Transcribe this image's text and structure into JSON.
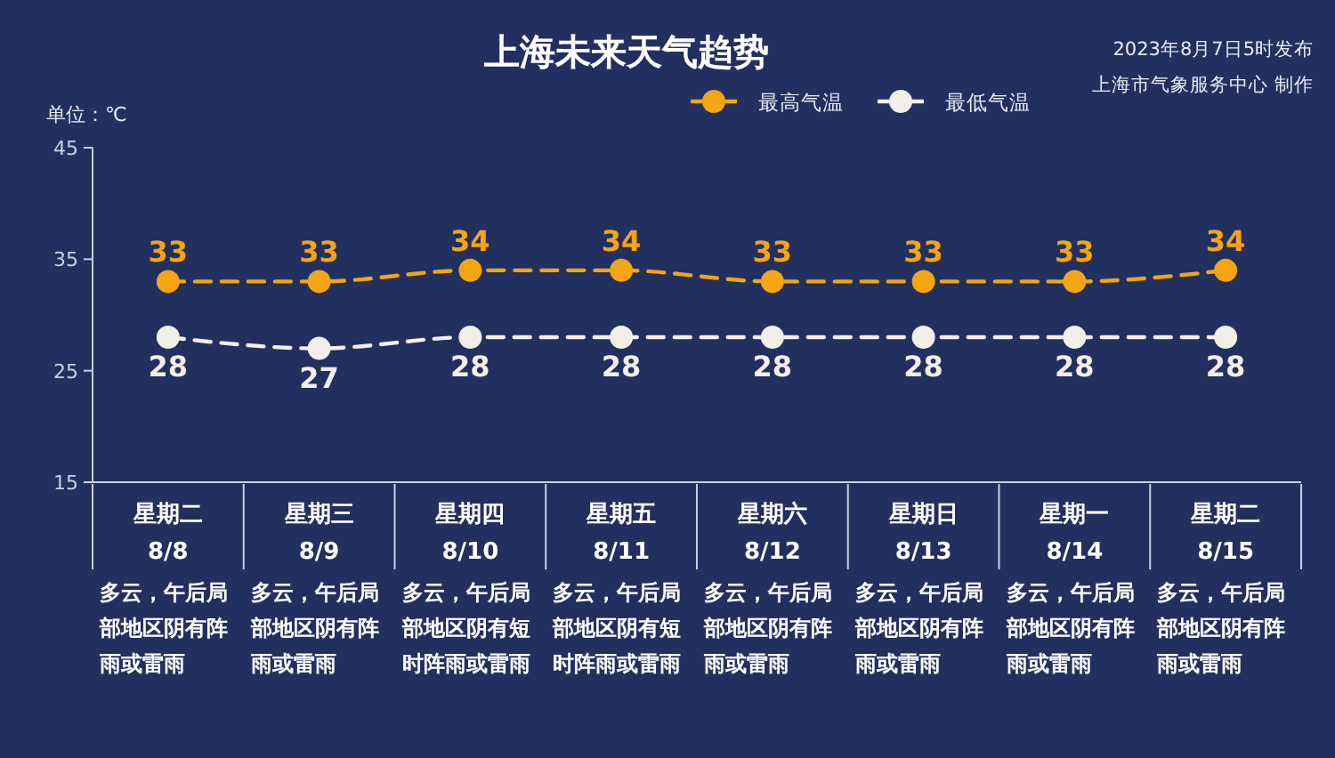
{
  "chart_data": {
    "type": "line",
    "title": "上海未来天气趋势",
    "ylabel": "单位：℃",
    "categories": [
      "星期二\n8/8",
      "星期三\n8/9",
      "星期四\n8/10",
      "星期五\n8/11",
      "星期六\n8/12",
      "星期日\n8/13",
      "星期一\n8/14",
      "星期二\n8/15"
    ],
    "series": [
      {
        "name": "最高气温",
        "color": "#f5a511",
        "values": [
          33,
          33,
          34,
          34,
          33,
          33,
          33,
          34
        ]
      },
      {
        "name": "最低气温",
        "color": "#f2efea",
        "values": [
          28,
          27,
          28,
          28,
          28,
          28,
          28,
          28
        ]
      }
    ],
    "ylim": [
      15,
      45
    ],
    "yticks": [
      15,
      25,
      35,
      45
    ],
    "legend": "top right",
    "marker": "circle",
    "line_style": "dashed",
    "data_labels": true,
    "annotations": [
      "2023年8月7日5时发布",
      "上海市气象服务中心 制作",
      "多云，午后局部地区阴有阵雨或雷雨",
      "多云，午后局部地区阴有阵雨或雷雨",
      "多云，午后局部地区阴有短时阵雨或雷雨",
      "多云，午后局部地区阴有短时阵雨或雷雨",
      "多云，午后局部地区阴有阵雨或雷雨",
      "多云，午后局部地区阴有阵雨或雷雨",
      "多云，午后局部地区阴有阵雨或雷雨",
      "多云，午后局部地区阴有阵雨或雷雨"
    ]
  }
}
